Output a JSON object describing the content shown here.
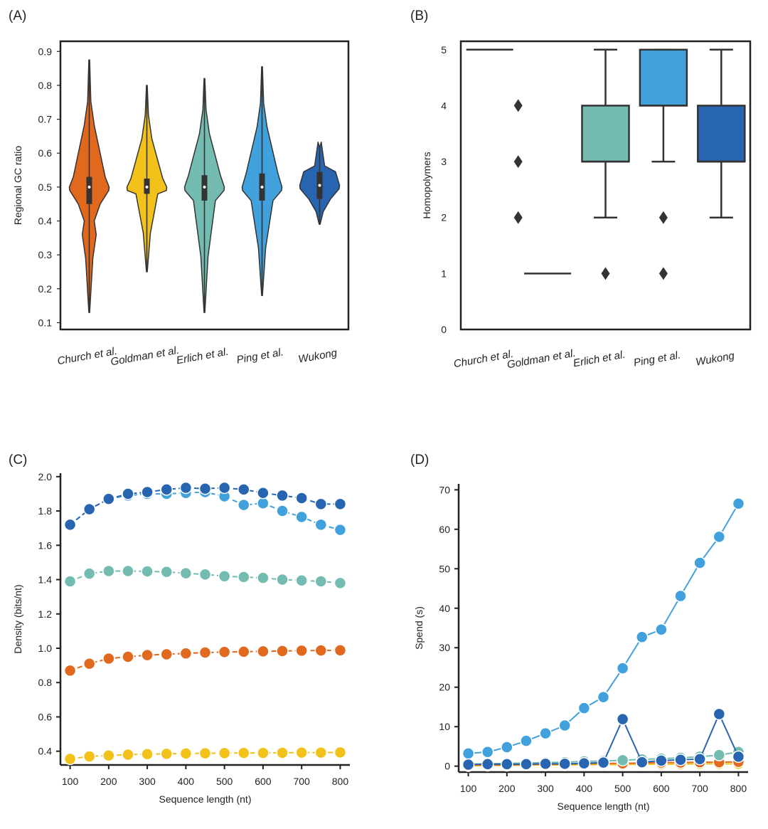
{
  "colors": {
    "church": "#e1691e",
    "goldman": "#f3c21a",
    "erlich": "#74bbb1",
    "ping": "#41a1dc",
    "wukong": "#2865b0",
    "dark": "#333333"
  },
  "chart_data": [
    {
      "panel": "(A)",
      "type": "violin",
      "ylabel": "Regional GC ratio",
      "ylim": [
        0.08,
        0.93
      ],
      "yticks": [
        "0.1",
        "0.2",
        "0.3",
        "0.4",
        "0.5",
        "0.6",
        "0.7",
        "0.8",
        "0.9"
      ],
      "categories": [
        "Church et al.",
        "Goldman et al.",
        "Erlich et al.",
        "Ping et al.",
        "Wukong"
      ],
      "series": [
        {
          "name": "Church et al.",
          "min": 0.13,
          "max": 0.875,
          "q1": 0.45,
          "median": 0.5,
          "q3": 0.53
        },
        {
          "name": "Goldman et al.",
          "min": 0.25,
          "max": 0.8,
          "q1": 0.48,
          "median": 0.5,
          "q3": 0.525
        },
        {
          "name": "Erlich et al.",
          "min": 0.13,
          "max": 0.82,
          "q1": 0.46,
          "median": 0.5,
          "q3": 0.535
        },
        {
          "name": "Ping et al.",
          "min": 0.18,
          "max": 0.855,
          "q1": 0.46,
          "median": 0.5,
          "q3": 0.54
        },
        {
          "name": "Wukong",
          "min": 0.39,
          "max": 0.62,
          "q1": 0.465,
          "median": 0.505,
          "q3": 0.545
        }
      ]
    },
    {
      "panel": "(B)",
      "type": "box",
      "ylabel": "Homopolymers",
      "ylim": [
        0,
        5.15
      ],
      "yticks": [
        "0",
        "1",
        "2",
        "3",
        "4",
        "5"
      ],
      "categories": [
        "Church et al.",
        "Goldman et al.",
        "Erlich et al.",
        "Ping et al.",
        "Wukong"
      ],
      "series": [
        {
          "name": "Church et al.",
          "q1": 5,
          "median": 5,
          "q3": 5,
          "whisker_low": 5,
          "whisker_high": 5,
          "outliers": [
            4,
            3,
            2
          ]
        },
        {
          "name": "Goldman et al.",
          "q1": 1,
          "median": 1,
          "q3": 1,
          "whisker_low": 1,
          "whisker_high": 1,
          "outliers": []
        },
        {
          "name": "Erlich et al.",
          "q1": 3,
          "median": 3,
          "q3": 4,
          "whisker_low": 2,
          "whisker_high": 5,
          "outliers": [
            1
          ]
        },
        {
          "name": "Ping et al.",
          "q1": 4,
          "median": 4,
          "q3": 5,
          "whisker_low": 3,
          "whisker_high": 5,
          "outliers": [
            2,
            1
          ]
        },
        {
          "name": "Wukong",
          "q1": 3,
          "median": 3,
          "q3": 4,
          "whisker_low": 2,
          "whisker_high": 5,
          "outliers": []
        }
      ]
    },
    {
      "panel": "(C)",
      "type": "line",
      "xlabel": "Sequence length (nt)",
      "ylabel": "Density (bits/nt)",
      "xlim": [
        75,
        825
      ],
      "ylim": [
        0.32,
        2.02
      ],
      "xticks": [
        "100",
        "200",
        "300",
        "400",
        "500",
        "600",
        "700",
        "800"
      ],
      "yticks": [
        "0.4",
        "0.6",
        "0.8",
        "1.0",
        "1.2",
        "1.4",
        "1.6",
        "1.8",
        "2.0"
      ],
      "x": [
        100,
        150,
        200,
        250,
        300,
        350,
        400,
        450,
        500,
        550,
        600,
        650,
        700,
        750,
        800
      ],
      "series": [
        {
          "name": "Goldman et al.",
          "color_key": "goldman",
          "values": [
            0.355,
            0.37,
            0.375,
            0.38,
            0.383,
            0.385,
            0.387,
            0.388,
            0.389,
            0.39,
            0.39,
            0.391,
            0.392,
            0.392,
            0.393
          ]
        },
        {
          "name": "Church et al.",
          "color_key": "church",
          "values": [
            0.87,
            0.91,
            0.94,
            0.95,
            0.96,
            0.965,
            0.97,
            0.975,
            0.978,
            0.98,
            0.982,
            0.984,
            0.986,
            0.987,
            0.988
          ]
        },
        {
          "name": "Erlich et al.",
          "color_key": "erlich",
          "values": [
            1.39,
            1.435,
            1.45,
            1.45,
            1.448,
            1.445,
            1.437,
            1.43,
            1.42,
            1.415,
            1.41,
            1.4,
            1.395,
            1.39,
            1.38
          ]
        },
        {
          "name": "Ping et al.",
          "color_key": "ping",
          "values": [
            1.72,
            1.81,
            1.87,
            1.89,
            1.9,
            1.9,
            1.905,
            1.91,
            1.885,
            1.835,
            1.845,
            1.8,
            1.765,
            1.72,
            1.69
          ]
        },
        {
          "name": "Wukong",
          "color_key": "wukong",
          "values": [
            1.72,
            1.81,
            1.87,
            1.9,
            1.91,
            1.925,
            1.935,
            1.93,
            1.935,
            1.925,
            1.905,
            1.89,
            1.875,
            1.84,
            1.84
          ]
        }
      ]
    },
    {
      "panel": "(D)",
      "type": "line",
      "xlabel": "Sequence length (nt)",
      "ylabel": "Spend (s)",
      "xlim": [
        75,
        825
      ],
      "ylim": [
        -1.5,
        71.5
      ],
      "xticks": [
        "100",
        "200",
        "300",
        "400",
        "500",
        "600",
        "700",
        "800"
      ],
      "yticks": [
        "0",
        "10",
        "20",
        "30",
        "40",
        "50",
        "60",
        "70"
      ],
      "x": [
        100,
        150,
        200,
        250,
        300,
        350,
        400,
        450,
        500,
        550,
        600,
        650,
        700,
        750,
        800
      ],
      "series": [
        {
          "name": "Goldman et al.",
          "color_key": "goldman",
          "values": [
            0.1,
            0.2,
            0.2,
            0.3,
            0.3,
            0.3,
            0.4,
            0.4,
            0.4,
            0.5,
            0.5,
            0.5,
            0.6,
            0.6,
            0.6
          ]
        },
        {
          "name": "Church et al.",
          "color_key": "church",
          "values": [
            0.2,
            0.3,
            0.3,
            0.4,
            0.5,
            0.5,
            0.6,
            0.7,
            0.7,
            0.8,
            0.9,
            0.9,
            1.0,
            1.0,
            1.1
          ]
        },
        {
          "name": "Erlich et al.",
          "color_key": "erlich",
          "values": [
            0.5,
            0.6,
            0.7,
            0.8,
            0.9,
            1.0,
            1.2,
            1.3,
            1.5,
            1.7,
            1.9,
            2.1,
            2.4,
            2.8,
            3.6
          ]
        },
        {
          "name": "Ping et al.",
          "color_key": "ping",
          "values": [
            3.2,
            3.6,
            4.8,
            6.4,
            8.3,
            10.3,
            14.7,
            17.5,
            24.8,
            32.7,
            34.6,
            43.1,
            51.5,
            58.1,
            66.5
          ]
        },
        {
          "name": "Wukong",
          "color_key": "wukong",
          "values": [
            0.4,
            0.5,
            0.5,
            0.5,
            0.6,
            0.6,
            0.7,
            0.9,
            11.9,
            1.0,
            1.4,
            1.6,
            1.8,
            13.2,
            2.4
          ]
        }
      ]
    }
  ]
}
